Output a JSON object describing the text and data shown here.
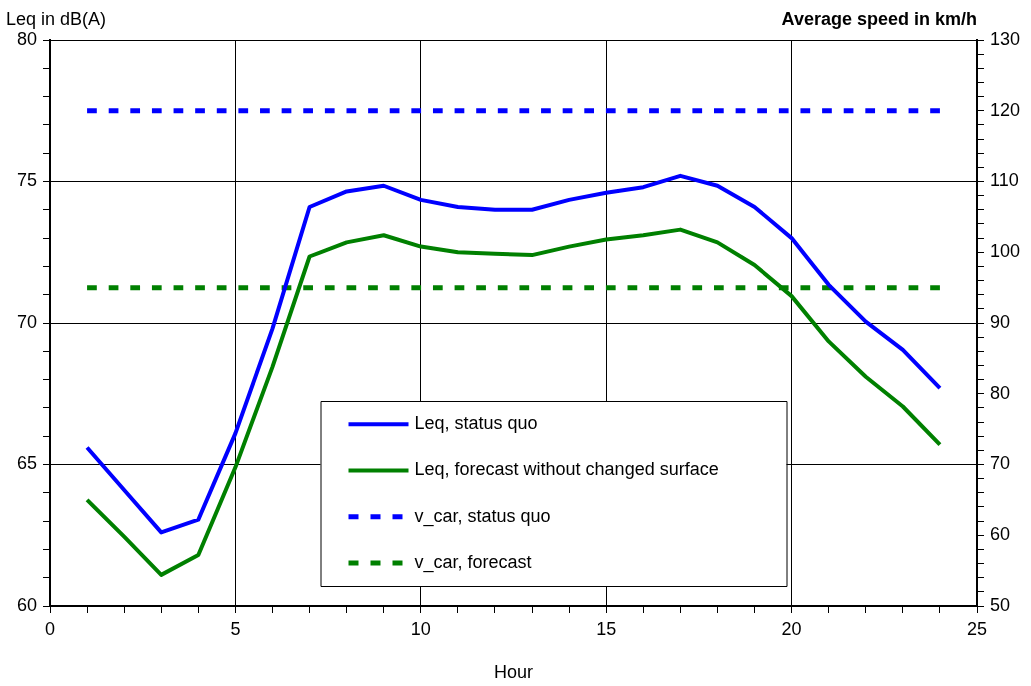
{
  "chart_data": {
    "type": "line",
    "xlabel": "Hour",
    "ylabel": "Leq in dB(A)",
    "y2label": "Average speed in km/h",
    "x": [
      1,
      2,
      3,
      4,
      5,
      6,
      7,
      8,
      9,
      10,
      11,
      12,
      13,
      14,
      15,
      16,
      17,
      18,
      19,
      20,
      21,
      22,
      23,
      24
    ],
    "xlim": [
      0,
      25
    ],
    "xticks": [
      0,
      {
        "value": 1,
        "label": null
      },
      {
        "value": 2,
        "label": null
      },
      {
        "value": 3,
        "label": null
      },
      {
        "value": 4,
        "label": null
      },
      5,
      {
        "value": 6,
        "label": null
      },
      {
        "value": 7,
        "label": null
      },
      {
        "value": 8,
        "label": null
      },
      {
        "value": 9,
        "label": null
      },
      10,
      {
        "value": 11,
        "label": null
      },
      {
        "value": 12,
        "label": null
      },
      {
        "value": 13,
        "label": null
      },
      {
        "value": 14,
        "label": null
      },
      15,
      {
        "value": 16,
        "label": null
      },
      {
        "value": 17,
        "label": null
      },
      {
        "value": 18,
        "label": null
      },
      {
        "value": 19,
        "label": null
      },
      20,
      {
        "value": 21,
        "label": null
      },
      {
        "value": 22,
        "label": null
      },
      {
        "value": 23,
        "label": null
      },
      {
        "value": 24,
        "label": null
      },
      25
    ],
    "ylim": [
      60,
      80
    ],
    "yticks": [
      60,
      {
        "value": 61,
        "label": null
      },
      {
        "value": 62,
        "label": null
      },
      {
        "value": 63,
        "label": null
      },
      {
        "value": 64,
        "label": null
      },
      65,
      {
        "value": 66,
        "label": null
      },
      {
        "value": 67,
        "label": null
      },
      {
        "value": 68,
        "label": null
      },
      {
        "value": 69,
        "label": null
      },
      70,
      {
        "value": 71,
        "label": null
      },
      {
        "value": 72,
        "label": null
      },
      {
        "value": 73,
        "label": null
      },
      {
        "value": 74,
        "label": null
      },
      75,
      {
        "value": 76,
        "label": null
      },
      {
        "value": 77,
        "label": null
      },
      {
        "value": 78,
        "label": null
      },
      {
        "value": 79,
        "label": null
      },
      80
    ],
    "y2lim": [
      50,
      130
    ],
    "y2ticks": [
      50,
      {
        "value": 52,
        "label": null
      },
      {
        "value": 54,
        "label": null
      },
      {
        "value": 56,
        "label": null
      },
      {
        "value": 58,
        "label": null
      },
      60,
      {
        "value": 62,
        "label": null
      },
      {
        "value": 64,
        "label": null
      },
      {
        "value": 66,
        "label": null
      },
      {
        "value": 68,
        "label": null
      },
      70,
      {
        "value": 72,
        "label": null
      },
      {
        "value": 74,
        "label": null
      },
      {
        "value": 76,
        "label": null
      },
      {
        "value": 78,
        "label": null
      },
      80,
      {
        "value": 82,
        "label": null
      },
      {
        "value": 84,
        "label": null
      },
      {
        "value": 86,
        "label": null
      },
      {
        "value": 88,
        "label": null
      },
      90,
      {
        "value": 92,
        "label": null
      },
      {
        "value": 94,
        "label": null
      },
      {
        "value": 96,
        "label": null
      },
      {
        "value": 98,
        "label": null
      },
      100,
      {
        "value": 102,
        "label": null
      },
      {
        "value": 104,
        "label": null
      },
      {
        "value": 106,
        "label": null
      },
      {
        "value": 108,
        "label": null
      },
      110,
      {
        "value": 112,
        "label": null
      },
      {
        "value": 114,
        "label": null
      },
      {
        "value": 116,
        "label": null
      },
      {
        "value": 118,
        "label": null
      },
      120,
      {
        "value": 122,
        "label": null
      },
      {
        "value": 124,
        "label": null
      },
      {
        "value": 126,
        "label": null
      },
      {
        "value": 128,
        "label": null
      },
      130
    ],
    "grid": true,
    "legend": "bottom",
    "marker": "none",
    "series": [
      {
        "name": "Leq, status quo",
        "color": "#0000ff",
        "line_style": "solid",
        "values": [
          65.6,
          64.1,
          62.6,
          63.05,
          66.1,
          69.8,
          74.1,
          74.65,
          74.85,
          74.35,
          74.1,
          74.0,
          74.0,
          74.35,
          74.6,
          74.8,
          75.2,
          74.85,
          74.1,
          73.0,
          71.35,
          70.05,
          69.05,
          67.7
        ]
      },
      {
        "name": "Leq, forecast without changed surface",
        "color": "#008000",
        "line_style": "solid",
        "values": [
          63.75,
          62.45,
          61.1,
          61.8,
          64.9,
          68.45,
          72.35,
          72.85,
          73.1,
          72.7,
          72.5,
          72.45,
          72.4,
          72.7,
          72.95,
          73.1,
          73.3,
          72.85,
          72.05,
          70.95,
          69.35,
          68.1,
          67.05,
          65.7
        ]
      },
      {
        "name": "v_car, status quo",
        "color": "#0000ff",
        "axis": "y2",
        "line_style": "dashed",
        "values": [
          120,
          120,
          120,
          120,
          120,
          120,
          120,
          120,
          120,
          120,
          120,
          120,
          120,
          120,
          120,
          120,
          120,
          120,
          120,
          120,
          120,
          120,
          120,
          120
        ]
      },
      {
        "name": "v_car, forecast",
        "color": "#008000",
        "axis": "y2",
        "line_style": "dashed",
        "values": [
          95,
          95,
          95,
          95,
          95,
          95,
          95,
          95,
          95,
          95,
          95,
          95,
          95,
          95,
          95,
          95,
          95,
          95,
          95,
          95,
          95,
          95,
          95,
          95
        ]
      }
    ]
  }
}
